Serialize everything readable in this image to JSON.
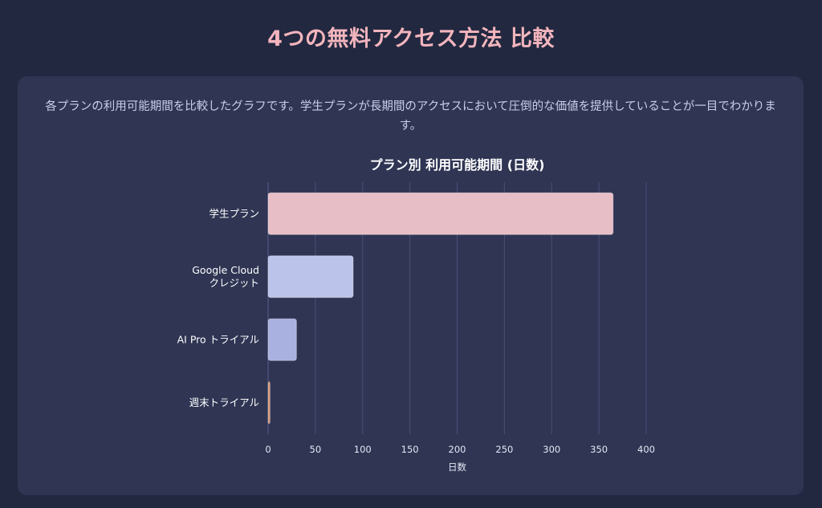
{
  "page": {
    "title": "4つの無料アクセス方法 比較",
    "description": "各プランの利用可能期間を比較したグラフです。学生プランが長期間のアクセスにおいて圧倒的な価値を提供していることが一目でわかります。"
  },
  "chart_data": {
    "type": "bar",
    "orientation": "horizontal",
    "title": "プラン別 利用可能期間 (日数)",
    "xlabel": "日数",
    "ylabel": "",
    "xlim": [
      0,
      400
    ],
    "xticks": [
      0,
      50,
      100,
      150,
      200,
      250,
      300,
      350,
      400
    ],
    "grid": true,
    "categories": [
      [
        "学生プラン"
      ],
      [
        "Google Cloud",
        "クレジット"
      ],
      [
        "AI Pro トライアル"
      ],
      [
        "週末トライアル"
      ]
    ],
    "values": [
      365,
      90,
      30,
      2
    ],
    "colors": [
      "#e8bec6",
      "#bcc3ea",
      "#a9b1e0",
      "#d9906a"
    ]
  }
}
